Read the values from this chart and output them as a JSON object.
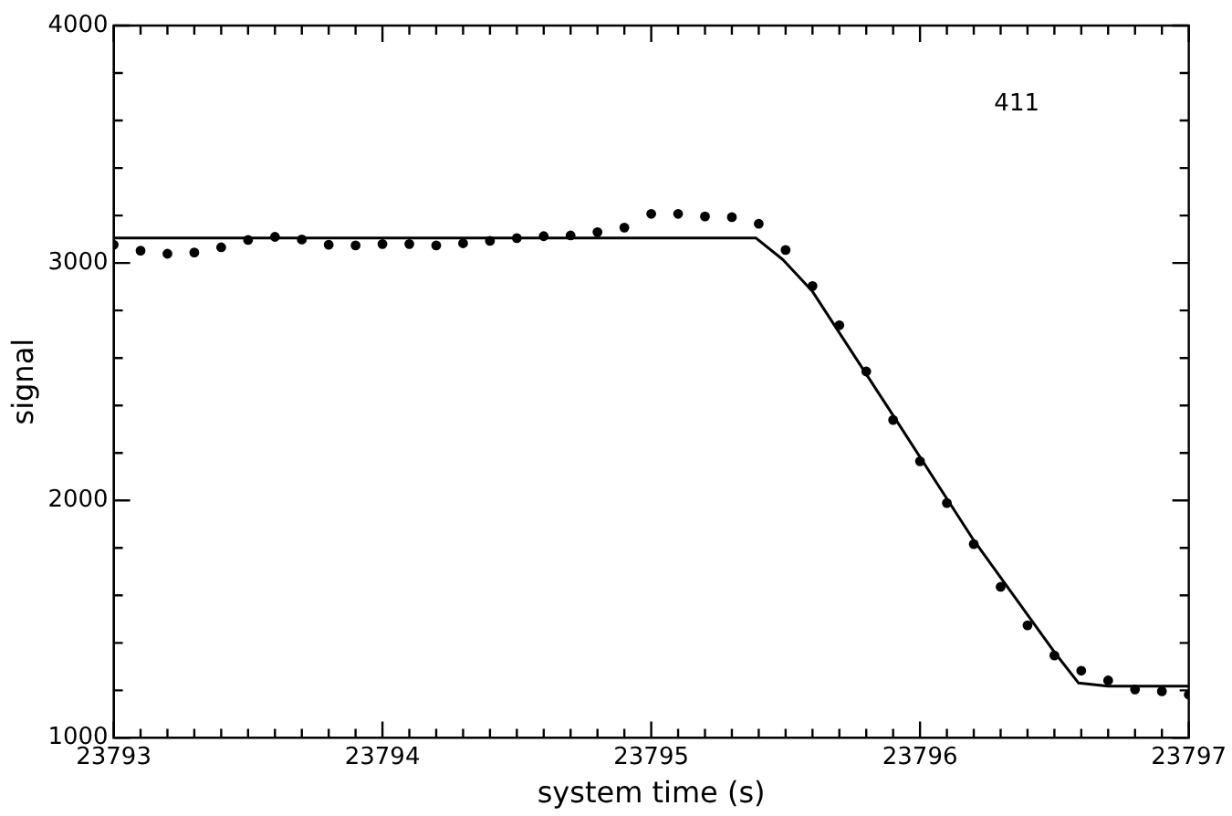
{
  "chart_data": {
    "type": "scatter",
    "xlabel": "system time (s)",
    "ylabel": "signal",
    "xlim": [
      23793,
      23797
    ],
    "ylim": [
      1000,
      4000
    ],
    "xticks": [
      23793,
      {
        "value": 23793.1,
        "label": null
      },
      {
        "value": 23793.2,
        "label": null
      },
      {
        "value": 23793.3,
        "label": null
      },
      {
        "value": 23793.4,
        "label": null
      },
      {
        "value": 23793.5,
        "label": null
      },
      {
        "value": 23793.6,
        "label": null
      },
      {
        "value": 23793.7,
        "label": null
      },
      {
        "value": 23793.8,
        "label": null
      },
      {
        "value": 23793.9,
        "label": null
      },
      23794,
      {
        "value": 23794.1,
        "label": null
      },
      {
        "value": 23794.2,
        "label": null
      },
      {
        "value": 23794.3,
        "label": null
      },
      {
        "value": 23794.4,
        "label": null
      },
      {
        "value": 23794.5,
        "label": null
      },
      {
        "value": 23794.6,
        "label": null
      },
      {
        "value": 23794.7,
        "label": null
      },
      {
        "value": 23794.8,
        "label": null
      },
      {
        "value": 23794.9,
        "label": null
      },
      23795,
      {
        "value": 23795.1,
        "label": null
      },
      {
        "value": 23795.2,
        "label": null
      },
      {
        "value": 23795.3,
        "label": null
      },
      {
        "value": 23795.4,
        "label": null
      },
      {
        "value": 23795.5,
        "label": null
      },
      {
        "value": 23795.6,
        "label": null
      },
      {
        "value": 23795.7,
        "label": null
      },
      {
        "value": 23795.8,
        "label": null
      },
      {
        "value": 23795.9,
        "label": null
      },
      23796,
      {
        "value": 23796.1,
        "label": null
      },
      {
        "value": 23796.2,
        "label": null
      },
      {
        "value": 23796.3,
        "label": null
      },
      {
        "value": 23796.4,
        "label": null
      },
      {
        "value": 23796.5,
        "label": null
      },
      {
        "value": 23796.6,
        "label": null
      },
      {
        "value": 23796.7,
        "label": null
      },
      {
        "value": 23796.8,
        "label": null
      },
      {
        "value": 23796.9,
        "label": null
      },
      23797
    ],
    "yticks": [
      1000,
      {
        "value": 1200,
        "label": null
      },
      {
        "value": 1400,
        "label": null
      },
      {
        "value": 1600,
        "label": null
      },
      {
        "value": 1800,
        "label": null
      },
      2000,
      {
        "value": 2200,
        "label": null
      },
      {
        "value": 2400,
        "label": null
      },
      {
        "value": 2600,
        "label": null
      },
      {
        "value": 2800,
        "label": null
      },
      3000,
      {
        "value": 3200,
        "label": null
      },
      {
        "value": 3400,
        "label": null
      },
      {
        "value": 3600,
        "label": null
      },
      {
        "value": 3800,
        "label": null
      },
      4000
    ],
    "grid": false,
    "legend": false,
    "marker": "circle",
    "line_style": "solid",
    "annotations": [
      "411"
    ],
    "series": [
      {
        "color": "#000000",
        "x": [
          23793,
          23793.1,
          23793.2,
          23793.3,
          23793.4,
          23793.5,
          23793.6,
          23793.7,
          23793.8,
          23793.9,
          23794,
          23794.1,
          23794.2,
          23794.3,
          23794.4,
          23794.5,
          23794.6,
          23794.7,
          23794.8,
          23794.9,
          23795,
          23795.1,
          23795.2,
          23795.3,
          23795.4,
          23795.5,
          23795.6,
          23795.7,
          23795.8,
          23795.9,
          23796,
          23796.1,
          23796.2,
          23796.3,
          23796.4,
          23796.5,
          23796.6,
          23796.7,
          23796.8,
          23796.9,
          23797
        ],
        "values": [
          3077,
          3052,
          3039,
          3044,
          3066,
          3097,
          3110,
          3099,
          3077,
          3074,
          3080,
          3080,
          3074,
          3083,
          3093,
          3105,
          3113,
          3116,
          3130,
          3149,
          3207,
          3207,
          3196,
          3193,
          3165,
          3055,
          2903,
          2738,
          2543,
          2339,
          2165,
          1989,
          1816,
          1636,
          1474,
          1347,
          1283,
          1242,
          1204,
          1196,
          1182
        ]
      },
      {
        "type": "line",
        "color": "#000000",
        "marker": "none",
        "x": [
          23793,
          23795.39,
          23795.49,
          23795.6,
          23795.9,
          23796.2,
          23796.5,
          23796.59,
          23796.7,
          23797
        ],
        "values": [
          3105,
          3105,
          3014,
          2880,
          2358,
          1832,
          1361,
          1231,
          1218,
          1218
        ]
      }
    ]
  }
}
